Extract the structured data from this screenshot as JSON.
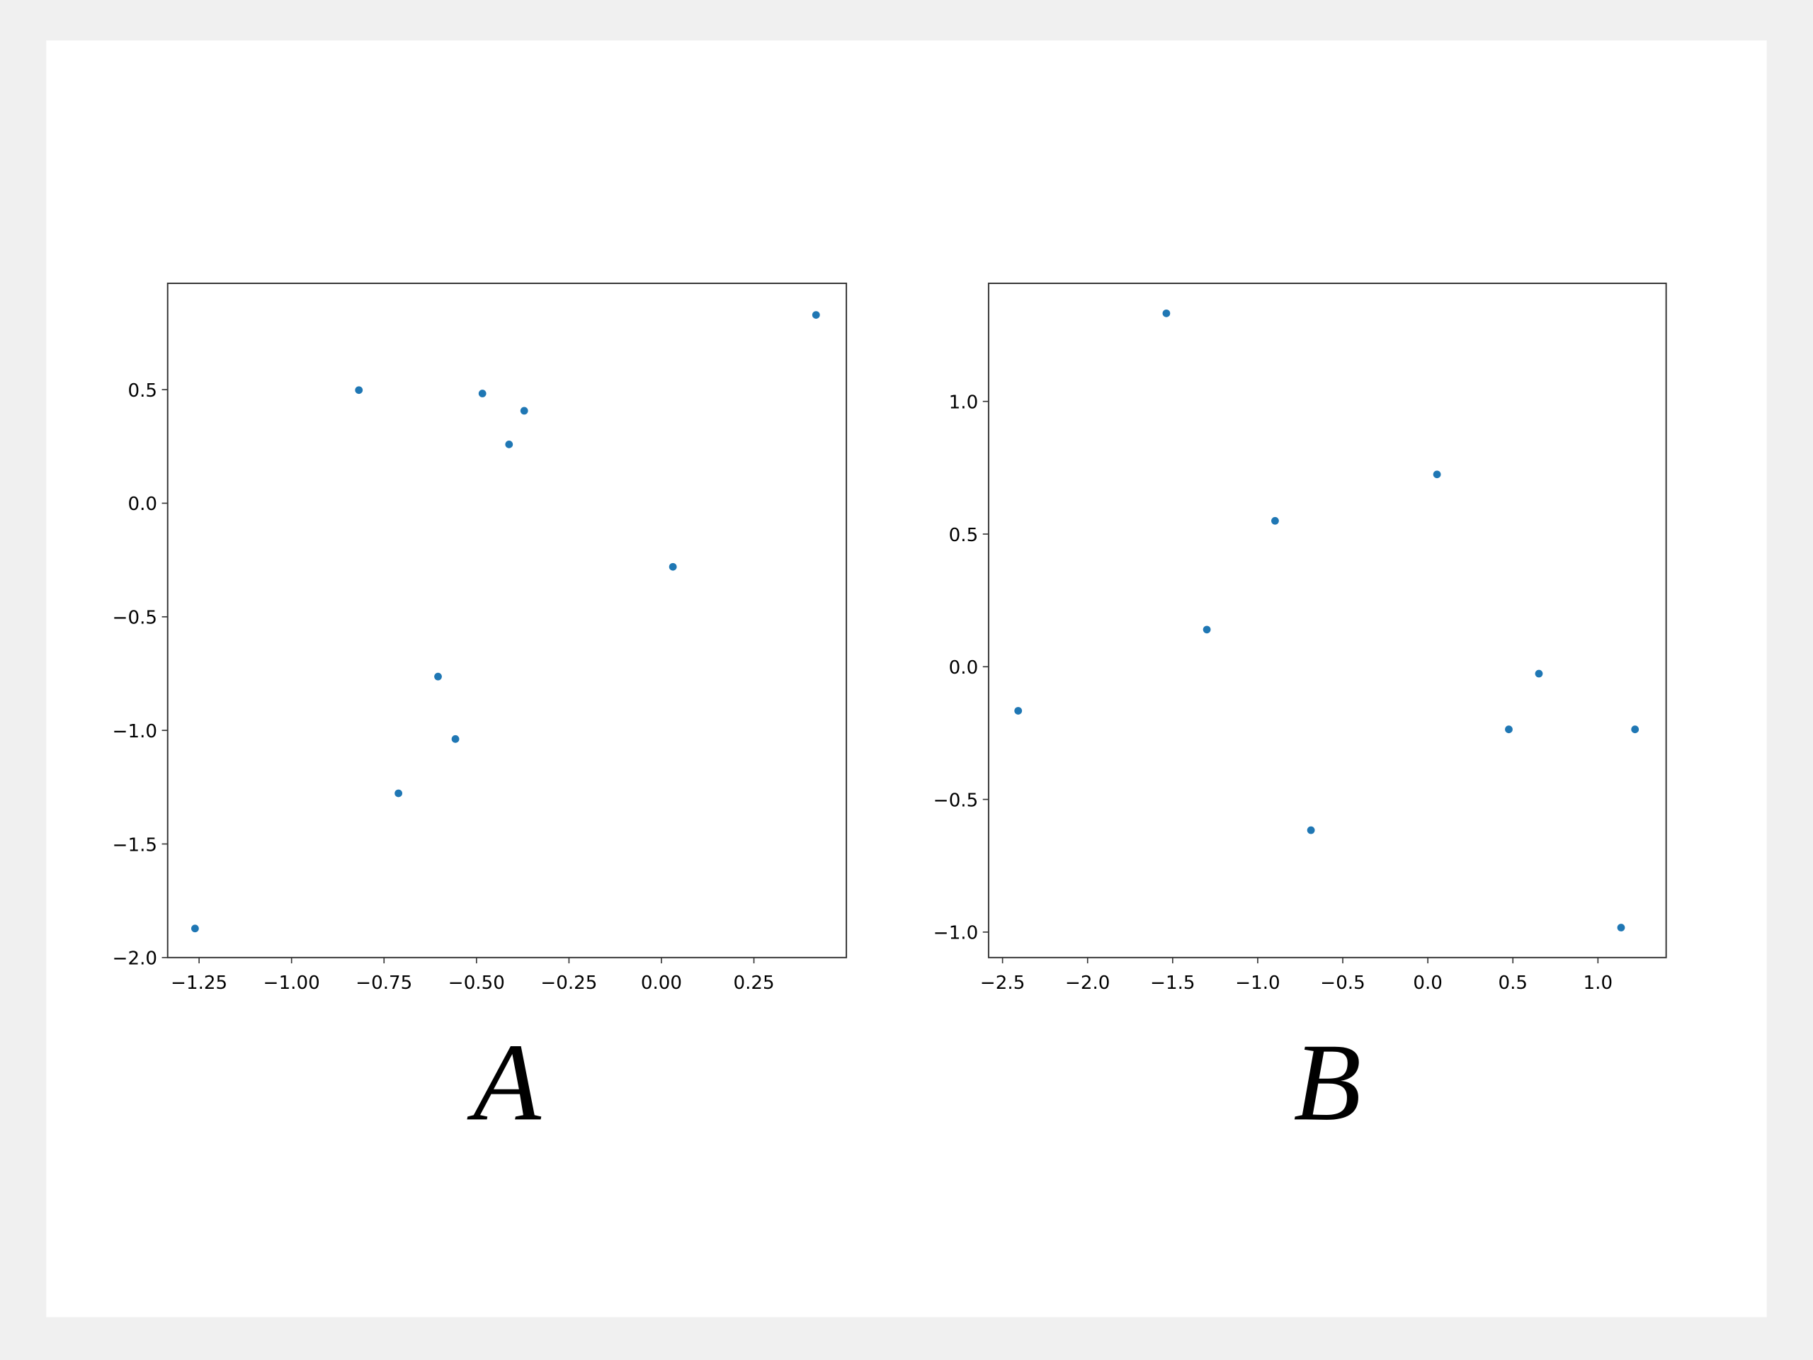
{
  "chart_data": [
    {
      "type": "scatter",
      "title": "A",
      "color": "#1f77b4",
      "x": [
        -1.261,
        -0.818,
        -0.484,
        -0.371,
        -0.412,
        0.031,
        -0.604,
        -0.557,
        -0.711,
        0.418
      ],
      "y": [
        -1.872,
        0.498,
        0.483,
        0.407,
        0.259,
        -0.28,
        -0.763,
        -1.038,
        -1.277,
        0.829
      ],
      "xlim": [
        -1.335,
        0.5
      ],
      "ylim": [
        -2.0,
        0.968
      ],
      "xticks": [
        {
          "value": -1.25,
          "label": "−1.25"
        },
        {
          "value": -1.0,
          "label": "−1.00"
        },
        {
          "value": -0.75,
          "label": "−0.75"
        },
        {
          "value": -0.5,
          "label": "−0.50"
        },
        {
          "value": -0.25,
          "label": "−0.25"
        },
        {
          "value": 0,
          "label": "0.00"
        },
        0.25
      ],
      "yticks": [
        {
          "value": -2.0,
          "label": "−2.0"
        },
        {
          "value": -1.5,
          "label": "−1.5"
        },
        {
          "value": -1.0,
          "label": "−1.0"
        },
        {
          "value": -0.5,
          "label": "−0.5"
        },
        {
          "value": 0,
          "label": "0.0"
        },
        0.5
      ]
    },
    {
      "type": "scatter",
      "title": "B",
      "color": "#1f77b4",
      "x": [
        -2.408,
        -1.537,
        -1.299,
        -0.898,
        -0.687,
        0.054,
        0.476,
        0.653,
        1.218,
        1.136
      ],
      "y": [
        -0.166,
        1.332,
        0.14,
        0.55,
        -0.616,
        0.725,
        -0.236,
        -0.026,
        -0.236,
        -0.983
      ],
      "xlim": [
        -2.582,
        1.401
      ],
      "ylim": [
        -1.096,
        1.445
      ],
      "xticks": [
        {
          "value": -2.5,
          "label": "−2.5"
        },
        {
          "value": -2.0,
          "label": "−2.0"
        },
        {
          "value": -1.5,
          "label": "−1.5"
        },
        {
          "value": -1.0,
          "label": "−1.0"
        },
        {
          "value": -0.5,
          "label": "−0.5"
        },
        {
          "value": 0,
          "label": "0.0"
        },
        0.5,
        {
          "value": 1.0,
          "label": "1.0"
        }
      ],
      "yticks": [
        {
          "value": -1.0,
          "label": "−1.0"
        },
        {
          "value": -0.5,
          "label": "−0.5"
        },
        {
          "value": 0,
          "label": "0.0"
        },
        0.5,
        {
          "value": 1.0,
          "label": "1.0"
        }
      ]
    }
  ]
}
